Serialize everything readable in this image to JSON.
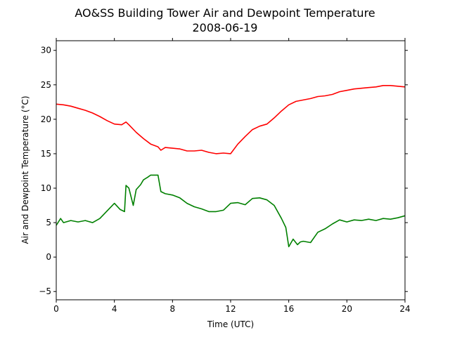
{
  "chart_data": {
    "type": "line",
    "title": "AO&SS Building Tower Air and Dewpoint Temperature",
    "subtitle": "2008-06-19",
    "xlabel": "Time (UTC)",
    "ylabel": "Air and Dewpoint Temperature (°C)",
    "xlim": [
      0,
      24
    ],
    "ylim": [
      -6.2,
      31.4
    ],
    "xticks": [
      0,
      4,
      8,
      12,
      16,
      20,
      24
    ],
    "yticks": [
      -5,
      0,
      5,
      10,
      15,
      20,
      25,
      30
    ],
    "grid": false,
    "series": [
      {
        "color": "#ff0000",
        "x": [
          0,
          0.5,
          1,
          1.5,
          2,
          2.5,
          3,
          3.5,
          4,
          4.5,
          4.8,
          5,
          5.5,
          6,
          6.5,
          7,
          7.2,
          7.5,
          8,
          8.5,
          9,
          9.5,
          10,
          10.5,
          11,
          11.5,
          12,
          12.5,
          13,
          13.5,
          14,
          14.5,
          15,
          15.5,
          16,
          16.5,
          17,
          17.5,
          18,
          18.5,
          19,
          19.5,
          20,
          20.5,
          21,
          21.5,
          22,
          22.5,
          23,
          23.5,
          24
        ],
        "values": [
          22.2,
          22.1,
          21.9,
          21.6,
          21.3,
          20.9,
          20.4,
          19.8,
          19.3,
          19.2,
          19.6,
          19.2,
          18.1,
          17.2,
          16.4,
          16.0,
          15.5,
          15.9,
          15.8,
          15.7,
          15.4,
          15.4,
          15.5,
          15.2,
          15.0,
          15.1,
          15.0,
          16.4,
          17.5,
          18.5,
          19.0,
          19.3,
          20.2,
          21.2,
          22.1,
          22.6,
          22.8,
          23.0,
          23.3,
          23.4,
          23.6,
          24.0,
          24.2,
          24.4,
          24.5,
          24.6,
          24.7,
          24.9,
          24.9,
          24.8,
          24.7
        ]
      },
      {
        "color": "#008000",
        "x": [
          0,
          0.3,
          0.5,
          1,
          1.5,
          2,
          2.5,
          3,
          3.5,
          4,
          4.4,
          4.7,
          4.8,
          5,
          5.3,
          5.5,
          5.8,
          6,
          6.3,
          6.5,
          7,
          7.2,
          7.5,
          8,
          8.5,
          9,
          9.5,
          10,
          10.5,
          11,
          11.5,
          12,
          12.5,
          13,
          13.5,
          14,
          14.5,
          15,
          15.5,
          15.8,
          16,
          16.3,
          16.6,
          16.8,
          17,
          17.5,
          18,
          18.5,
          19,
          19.5,
          20,
          20.5,
          21,
          21.5,
          22,
          22.5,
          23,
          23.5,
          24
        ],
        "values": [
          4.6,
          5.6,
          5.0,
          5.3,
          5.1,
          5.3,
          5.0,
          5.6,
          6.7,
          7.8,
          6.9,
          6.6,
          10.4,
          10.0,
          7.5,
          9.8,
          10.5,
          11.2,
          11.6,
          11.9,
          11.9,
          9.5,
          9.2,
          9.0,
          8.6,
          7.8,
          7.3,
          7.0,
          6.6,
          6.6,
          6.8,
          7.8,
          7.9,
          7.6,
          8.5,
          8.6,
          8.3,
          7.5,
          5.6,
          4.3,
          1.5,
          2.6,
          1.8,
          2.2,
          2.3,
          2.1,
          3.6,
          4.1,
          4.8,
          5.4,
          5.1,
          5.4,
          5.3,
          5.5,
          5.3,
          5.6,
          5.5,
          5.7,
          6.0
        ]
      }
    ]
  }
}
